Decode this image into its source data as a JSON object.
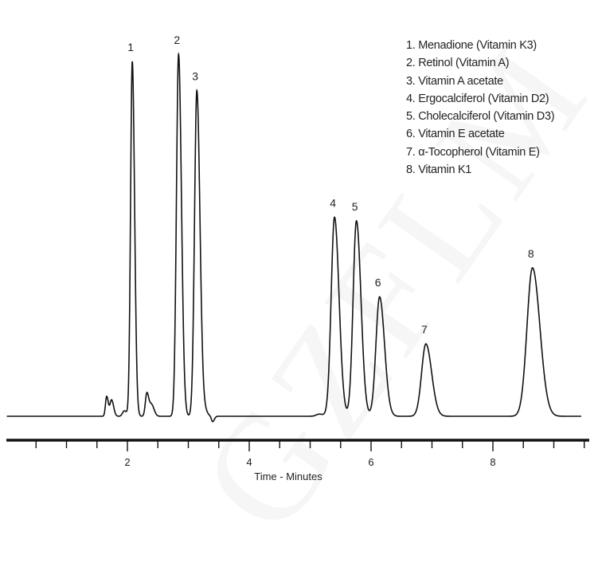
{
  "watermark": "GZFLM",
  "chart_data": {
    "type": "line",
    "title": "",
    "xlabel": "Time - Minutes",
    "ylabel": "",
    "xlim": [
      0,
      9.5
    ],
    "ylim": [
      0,
      1.0
    ],
    "x_ticks_major": [
      2,
      4,
      6,
      8
    ],
    "x_tick_labels": [
      "2",
      "4",
      "6",
      "8"
    ],
    "x_minor_tick_step": 0.5,
    "grid": false,
    "legend_placement": "top-right",
    "legend": [
      "1. Menadione (Vitamin K3)",
      "2. Retinol (Vitamin A)",
      "3. Vitamin A acetate",
      "4. Ergocalciferol (Vitamin D2)",
      "5. Cholecalciferol (Vitamin D3)",
      "6. Vitamin E acetate",
      "7. α-Tocopherol (Vitamin E)",
      "8. Vitamin K1"
    ],
    "peaks": [
      {
        "label": "1",
        "time": 2.08,
        "relative_height": 0.98,
        "width": 0.028
      },
      {
        "label": "2",
        "time": 2.84,
        "relative_height": 1.0,
        "width": 0.035
      },
      {
        "label": "3",
        "time": 3.14,
        "relative_height": 0.9,
        "width": 0.038
      },
      {
        "label": "4",
        "time": 5.4,
        "relative_height": 0.55,
        "width": 0.055
      },
      {
        "label": "5",
        "time": 5.76,
        "relative_height": 0.54,
        "width": 0.055
      },
      {
        "label": "6",
        "time": 6.14,
        "relative_height": 0.33,
        "width": 0.06
      },
      {
        "label": "7",
        "time": 6.9,
        "relative_height": 0.2,
        "width": 0.07
      },
      {
        "label": "8",
        "time": 8.65,
        "relative_height": 0.41,
        "width": 0.09
      }
    ],
    "minor_peaks": [
      {
        "time": 1.66,
        "relative_height": 0.055,
        "width": 0.02
      },
      {
        "time": 1.74,
        "relative_height": 0.045,
        "width": 0.025
      },
      {
        "time": 1.95,
        "relative_height": 0.015,
        "width": 0.03
      },
      {
        "time": 2.32,
        "relative_height": 0.065,
        "width": 0.025
      },
      {
        "time": 2.4,
        "relative_height": 0.03,
        "width": 0.03
      },
      {
        "time": 3.28,
        "relative_height": 0.012,
        "width": 0.03
      },
      {
        "time": 3.4,
        "relative_height": -0.015,
        "width": 0.02
      },
      {
        "time": 5.15,
        "relative_height": 0.006,
        "width": 0.05
      }
    ]
  }
}
